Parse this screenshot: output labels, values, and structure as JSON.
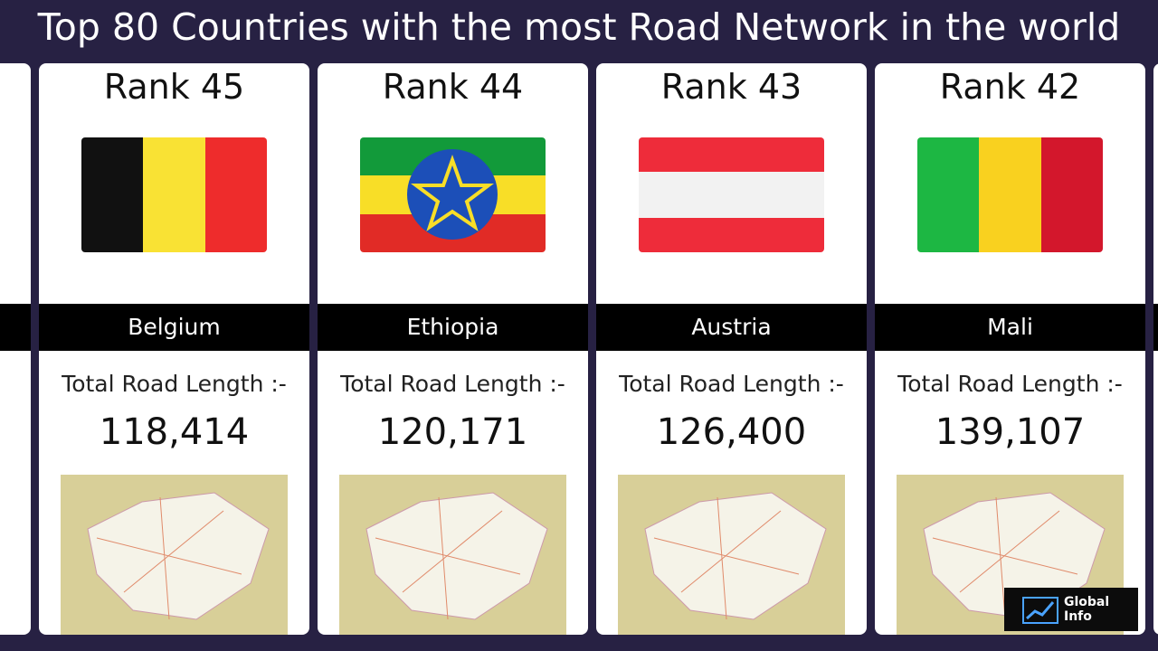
{
  "header": {
    "title": "Top 80 Countries with the most Road Network in the world"
  },
  "cards": [
    {
      "rank": "Rank 45",
      "country": "Belgium",
      "label": "Total Road Length :-",
      "length": "118,414"
    },
    {
      "rank": "Rank 44",
      "country": "Ethiopia",
      "label": "Total Road Length :-",
      "length": "120,171"
    },
    {
      "rank": "Rank 43",
      "country": "Austria",
      "label": "Total Road Length :-",
      "length": "126,400"
    },
    {
      "rank": "Rank 42",
      "country": "Mali",
      "label": "Total Road Length :-",
      "length": "139,107"
    }
  ],
  "watermark": {
    "line1": "Global",
    "line2": "Info"
  }
}
